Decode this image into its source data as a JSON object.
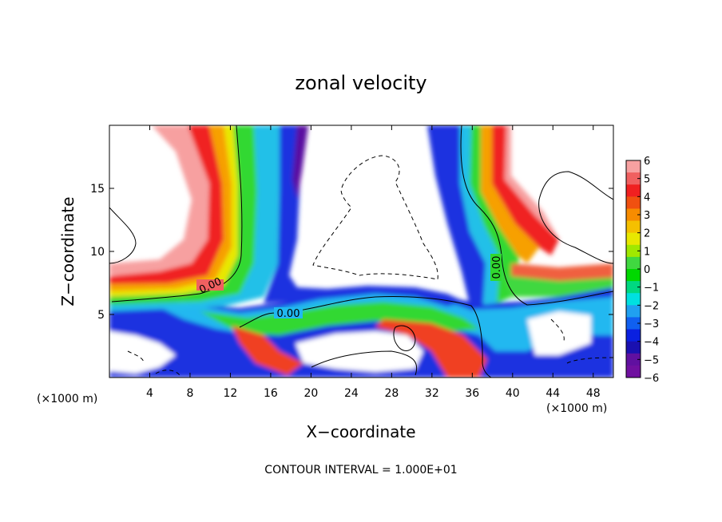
{
  "chart_data": {
    "type": "heatmap",
    "title": "zonal velocity",
    "xlabel": "X−coordinate",
    "ylabel": "Z−coordinate",
    "x_unit_left": "(×1000 m)",
    "x_unit_right": "(×1000 m)",
    "xlim": [
      0,
      50
    ],
    "ylim": [
      0,
      20
    ],
    "x_ticks": [
      4,
      8,
      12,
      16,
      20,
      24,
      28,
      32,
      36,
      40,
      44,
      48
    ],
    "y_ticks": [
      5,
      10,
      15
    ],
    "colorbar": {
      "min": -6,
      "max": 6,
      "ticks": [
        "6",
        "5",
        "4",
        "3",
        "2",
        "1",
        "0",
        "−1",
        "−2",
        "−3",
        "−4",
        "−5",
        "−6"
      ],
      "colors": [
        "#f7a1a1",
        "#f06060",
        "#f02020",
        "#f05010",
        "#f78c00",
        "#f5c000",
        "#e8e800",
        "#a0e800",
        "#40d840",
        "#00d800",
        "#00d880",
        "#00e0e0",
        "#20a0f0",
        "#1060f0",
        "#0a20e0",
        "#1a10b0",
        "#6010a0",
        "#7010a0"
      ]
    },
    "contour_labels": [
      "0.00",
      "0.00",
      "0.00"
    ],
    "footer": "CONTOUR INTERVAL = 1.000E+01"
  }
}
